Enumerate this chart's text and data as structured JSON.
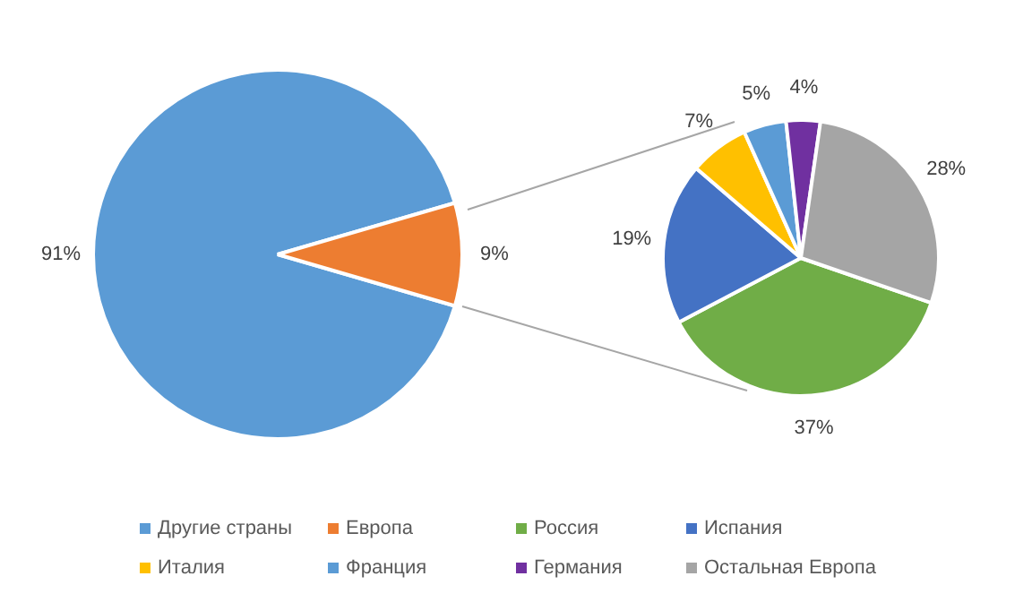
{
  "chart_data": [
    {
      "type": "pie",
      "categories": [
        "Другие страны",
        "Европа"
      ],
      "values": [
        91,
        9
      ],
      "colors": [
        "#5b9bd5",
        "#ed7d31"
      ],
      "value_labels": [
        "91%",
        "9%"
      ],
      "legend": "bottom"
    },
    {
      "type": "pie",
      "categories": [
        "Россия",
        "Испания",
        "Италия",
        "Франция",
        "Германия",
        "Остальная Европа"
      ],
      "values": [
        37,
        19,
        7,
        5,
        4,
        28
      ],
      "colors": [
        "#70ad47",
        "#4472c4",
        "#ffc000",
        "#5b9bd5",
        "#7030a0",
        "#a5a5a5"
      ],
      "value_labels": [
        "37%",
        "19%",
        "7%",
        "5%",
        "4%",
        "28%"
      ],
      "legend": "bottom"
    }
  ]
}
